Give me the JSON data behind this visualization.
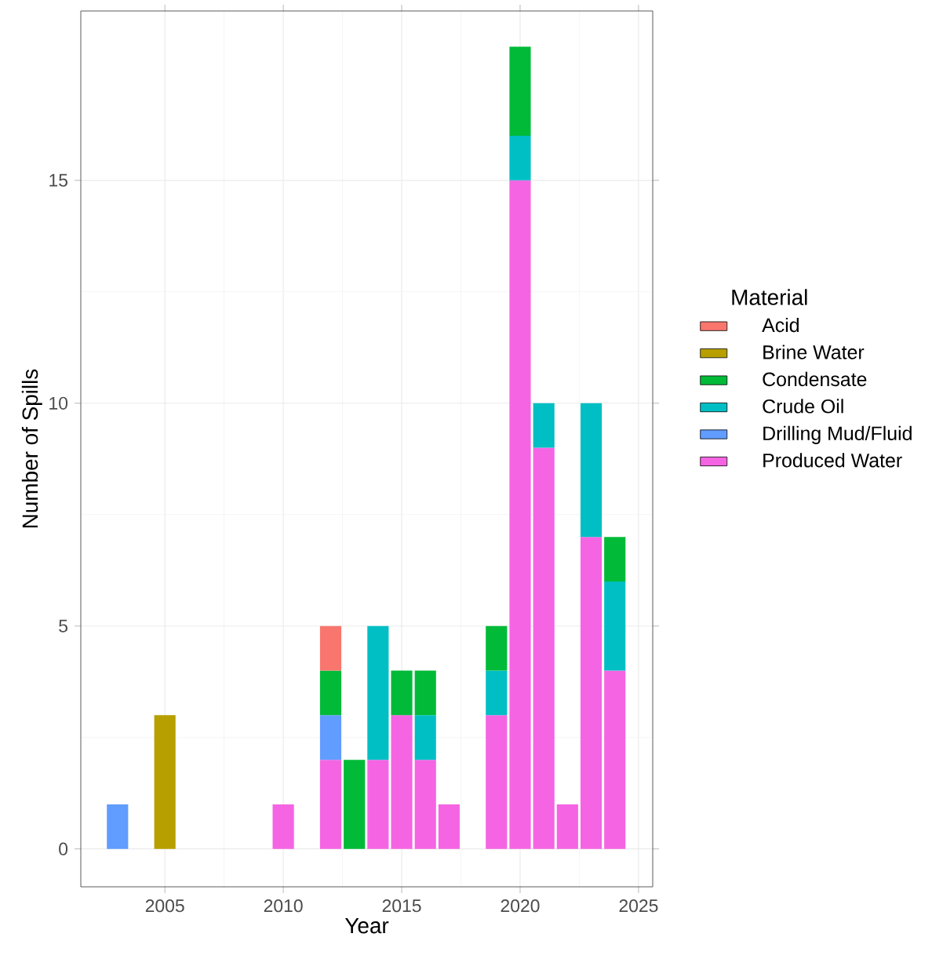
{
  "chart_data": {
    "type": "bar",
    "stacked": true,
    "xlabel": "Year",
    "ylabel": "Number of Spills",
    "legend_title": "Material",
    "x": [
      2003,
      2005,
      2010,
      2012,
      2013,
      2014,
      2015,
      2016,
      2017,
      2019,
      2020,
      2021,
      2022,
      2023,
      2024
    ],
    "series": [
      {
        "name": "Produced Water",
        "color": "#f564e3",
        "values": [
          null,
          null,
          1,
          2,
          null,
          2,
          3,
          2,
          1,
          3,
          15,
          9,
          1,
          7,
          4
        ]
      },
      {
        "name": "Drilling Mud/Fluid",
        "color": "#619cff",
        "values": [
          1,
          null,
          null,
          1,
          null,
          null,
          null,
          null,
          null,
          null,
          null,
          null,
          null,
          null,
          null
        ]
      },
      {
        "name": "Crude Oil",
        "color": "#00bfc4",
        "values": [
          null,
          null,
          null,
          null,
          null,
          3,
          null,
          1,
          null,
          1,
          1,
          1,
          null,
          3,
          2
        ]
      },
      {
        "name": "Condensate",
        "color": "#00ba38",
        "values": [
          null,
          null,
          null,
          1,
          2,
          null,
          1,
          1,
          null,
          1,
          2,
          null,
          null,
          null,
          1
        ]
      },
      {
        "name": "Brine Water",
        "color": "#b79f00",
        "values": [
          null,
          3,
          null,
          null,
          null,
          null,
          null,
          null,
          null,
          null,
          null,
          null,
          null,
          null,
          null
        ]
      },
      {
        "name": "Acid",
        "color": "#f8766d",
        "values": [
          null,
          null,
          null,
          1,
          null,
          null,
          null,
          null,
          null,
          null,
          null,
          null,
          null,
          null,
          null
        ]
      }
    ],
    "xlim": [
      2001.45,
      2025.6
    ],
    "ylim": [
      -0.85,
      18.8
    ],
    "xticks": [
      2005,
      2010,
      2015,
      2020,
      2025
    ],
    "yticks": [
      0,
      5,
      10,
      15
    ],
    "grid": true,
    "legend": "right"
  }
}
